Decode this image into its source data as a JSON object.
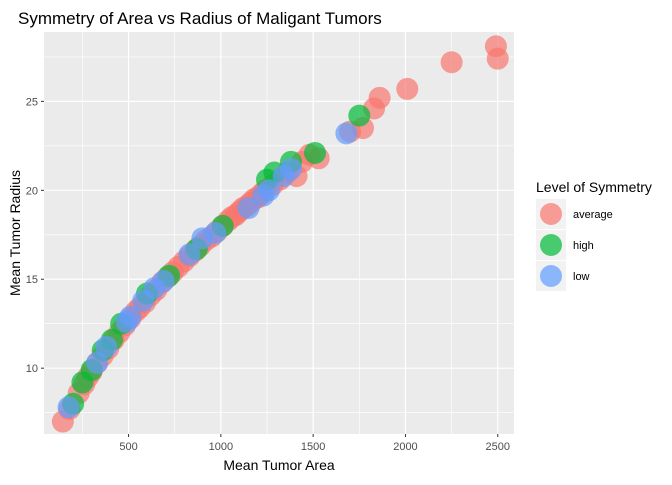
{
  "chart_data": {
    "type": "scatter",
    "title": "Symmetry of Area vs Radius of Maligant Tumors",
    "xlabel": "Mean Tumor Area",
    "ylabel": "Mean Tumor Radius",
    "xlim": [
      42,
      2588
    ],
    "ylim": [
      6.3,
      28.9
    ],
    "x_ticks": [
      500,
      1000,
      1500,
      2000,
      2500
    ],
    "y_ticks": [
      10,
      15,
      20,
      25
    ],
    "grid": true,
    "legend": {
      "title": "Level of Symmetry",
      "placement": "right"
    },
    "series": [
      {
        "name": "average",
        "color": "#F8766D",
        "points": [
          [
            144,
            7.0
          ],
          [
            180,
            7.7
          ],
          [
            230,
            8.6
          ],
          [
            260,
            9.1
          ],
          [
            280,
            9.5
          ],
          [
            300,
            9.8
          ],
          [
            330,
            10.3
          ],
          [
            360,
            10.7
          ],
          [
            390,
            11.1
          ],
          [
            420,
            11.6
          ],
          [
            450,
            12.0
          ],
          [
            480,
            12.4
          ],
          [
            510,
            12.8
          ],
          [
            540,
            13.2
          ],
          [
            560,
            13.4
          ],
          [
            590,
            13.7
          ],
          [
            620,
            14.1
          ],
          [
            650,
            14.4
          ],
          [
            680,
            14.8
          ],
          [
            710,
            15.1
          ],
          [
            740,
            15.4
          ],
          [
            770,
            15.7
          ],
          [
            800,
            16.0
          ],
          [
            830,
            16.3
          ],
          [
            860,
            16.6
          ],
          [
            890,
            16.9
          ],
          [
            920,
            17.2
          ],
          [
            950,
            17.4
          ],
          [
            980,
            17.7
          ],
          [
            1010,
            18.0
          ],
          [
            1040,
            18.3
          ],
          [
            1060,
            18.5
          ],
          [
            1080,
            18.6
          ],
          [
            1100,
            18.8
          ],
          [
            1120,
            19.0
          ],
          [
            1140,
            19.1
          ],
          [
            1160,
            19.3
          ],
          [
            1180,
            19.5
          ],
          [
            1200,
            19.6
          ],
          [
            1220,
            19.8
          ],
          [
            1240,
            20.0
          ],
          [
            1280,
            20.3
          ],
          [
            1320,
            20.6
          ],
          [
            1360,
            21.0
          ],
          [
            1410,
            20.8
          ],
          [
            1440,
            21.6
          ],
          [
            1480,
            22.0
          ],
          [
            1530,
            21.8
          ],
          [
            1700,
            23.3
          ],
          [
            1770,
            23.5
          ],
          [
            1830,
            24.6
          ],
          [
            1860,
            25.2
          ],
          [
            2010,
            25.7
          ],
          [
            2250,
            27.2
          ],
          [
            2490,
            28.1
          ],
          [
            2500,
            27.4
          ]
        ]
      },
      {
        "name": "high",
        "color": "#00BA38",
        "points": [
          [
            200,
            8.0
          ],
          [
            250,
            9.2
          ],
          [
            300,
            9.9
          ],
          [
            360,
            11.0
          ],
          [
            410,
            11.6
          ],
          [
            460,
            12.5
          ],
          [
            600,
            14.2
          ],
          [
            720,
            15.2
          ],
          [
            870,
            16.7
          ],
          [
            1010,
            18.0
          ],
          [
            1250,
            20.6
          ],
          [
            1290,
            21.0
          ],
          [
            1380,
            21.6
          ],
          [
            1510,
            22.1
          ],
          [
            1750,
            24.2
          ]
        ]
      },
      {
        "name": "low",
        "color": "#619CFF",
        "points": [
          [
            175,
            7.8
          ],
          [
            330,
            10.3
          ],
          [
            380,
            11.2
          ],
          [
            490,
            12.6
          ],
          [
            510,
            12.9
          ],
          [
            580,
            13.8
          ],
          [
            640,
            14.5
          ],
          [
            690,
            14.9
          ],
          [
            830,
            16.4
          ],
          [
            900,
            17.3
          ],
          [
            970,
            17.6
          ],
          [
            1150,
            19.0
          ],
          [
            1230,
            19.7
          ],
          [
            1260,
            20.0
          ],
          [
            1340,
            20.8
          ],
          [
            1380,
            21.2
          ],
          [
            1680,
            23.2
          ]
        ]
      }
    ]
  }
}
